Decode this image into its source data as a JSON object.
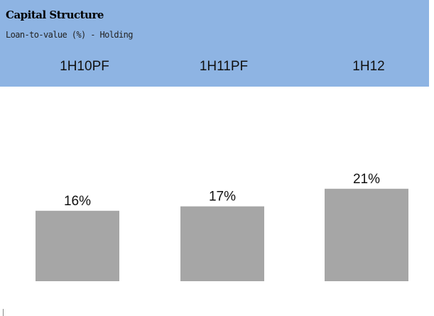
{
  "header": {
    "title": "Capital Structure",
    "subtitle": "Loan-to-value (%) - Holding"
  },
  "chart_data": {
    "type": "bar",
    "categories": [
      "1H10PF",
      "1H11PF",
      "1H12"
    ],
    "values": [
      16,
      17,
      21
    ],
    "value_labels": [
      "16%",
      "17%",
      "21%"
    ],
    "title": "Capital Structure",
    "xlabel": "",
    "ylabel": "",
    "bar_color": "#a6a6a6",
    "header_color": "#8eb4e3",
    "grid": false,
    "legend": "none"
  }
}
